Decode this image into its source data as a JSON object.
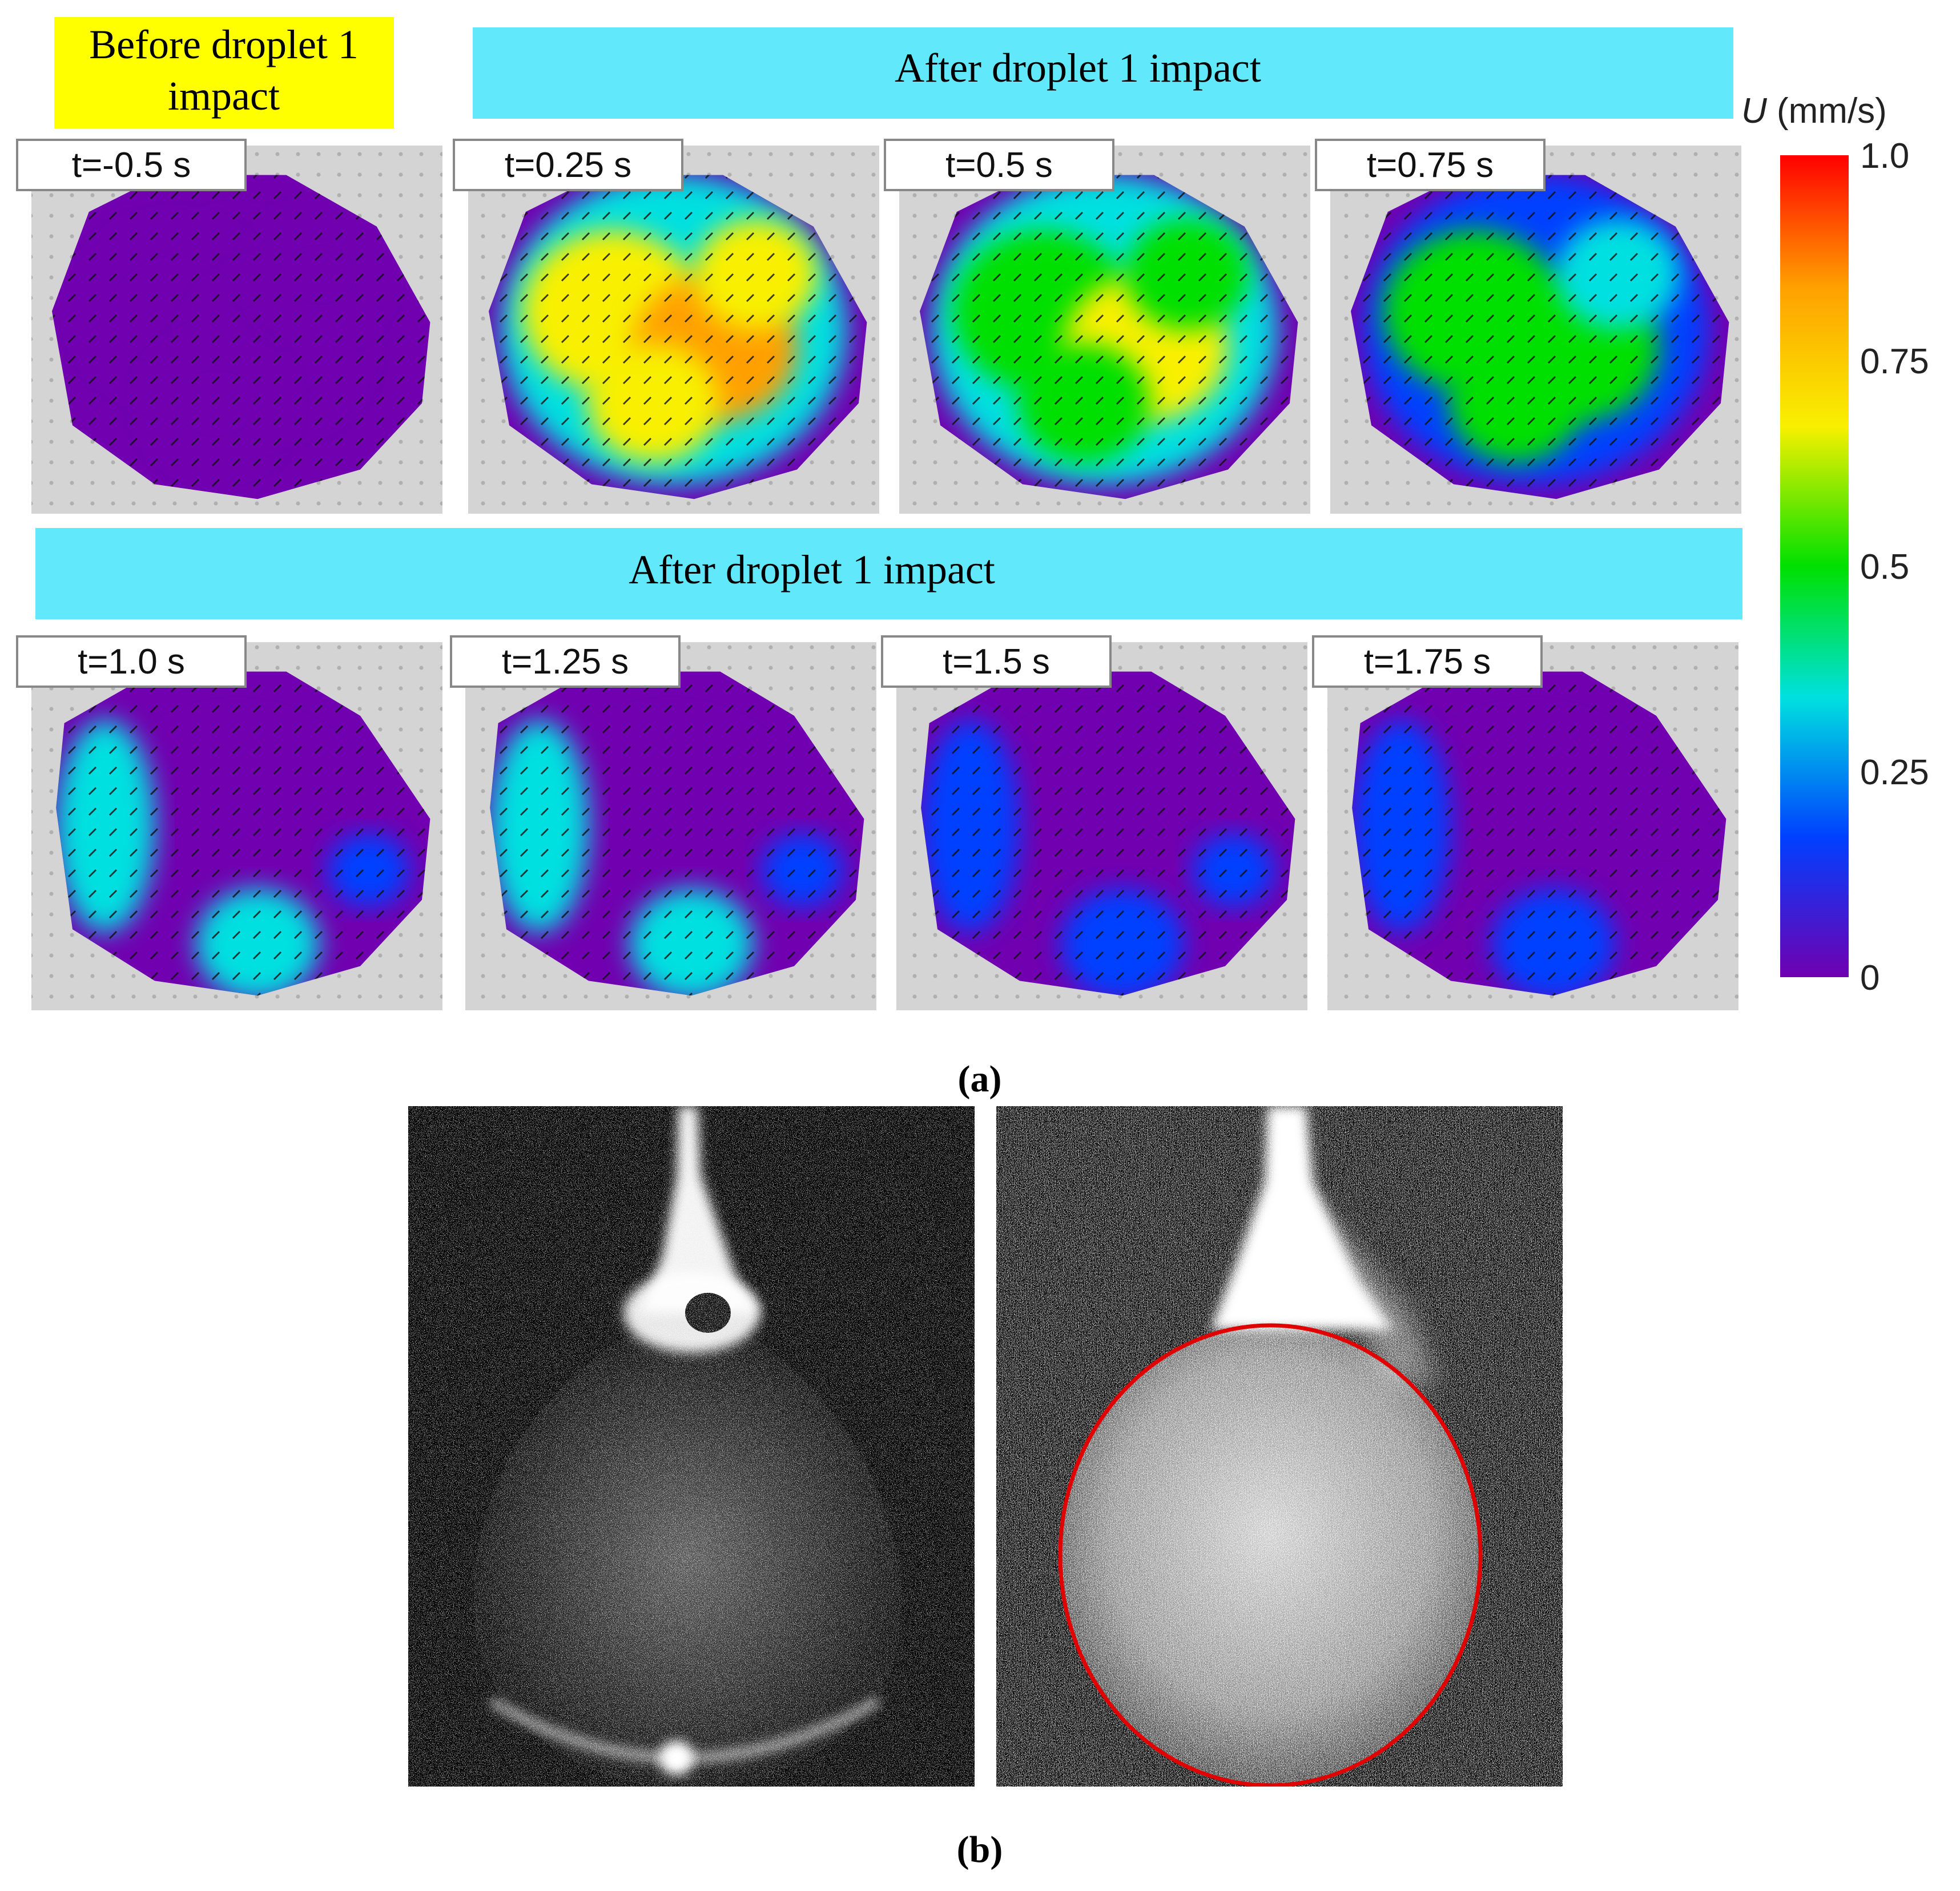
{
  "figure": {
    "panel_a": {
      "caption": "(a)",
      "banners": {
        "before": {
          "line1": "Before droplet 1",
          "line2": "impact",
          "color": "#ffff00"
        },
        "after_top": {
          "text": "After droplet 1 impact",
          "color": "#62e8fb"
        },
        "after_bottom": {
          "text": "After droplet 1 impact",
          "color": "#62e8fb"
        }
      },
      "frames": [
        {
          "id": "f1",
          "label": "t=-0.5 s",
          "level": 0.05
        },
        {
          "id": "f2",
          "label": "t=0.25 s",
          "level": 0.8
        },
        {
          "id": "f3",
          "label": "t=0.5 s",
          "level": 0.6
        },
        {
          "id": "f4",
          "label": "t=0.75 s",
          "level": 0.55
        },
        {
          "id": "f5",
          "label": "t=1.0 s",
          "level": 0.35
        },
        {
          "id": "f6",
          "label": "t=1.25 s",
          "level": 0.3
        },
        {
          "id": "f7",
          "label": "t=1.5 s",
          "level": 0.2
        },
        {
          "id": "f8",
          "label": "t=1.75 s",
          "level": 0.1
        }
      ],
      "colorbar": {
        "title_var": "U",
        "title_unit": " (mm/s)",
        "ticks": [
          "1.0",
          "0.75",
          "0.5",
          "0.25",
          "0"
        ],
        "colors": [
          "#ff0000",
          "#ffa000",
          "#f8f000",
          "#00e000",
          "#00e0e0",
          "#0040ff",
          "#7000b0"
        ]
      }
    },
    "panel_b": {
      "caption": "(b)",
      "outline_color": "#e00000"
    }
  }
}
